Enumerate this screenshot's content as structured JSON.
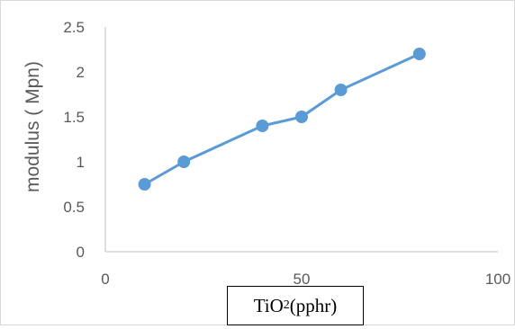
{
  "chart_data": {
    "type": "line",
    "title": "",
    "xlabel": {
      "base": "TiO",
      "subscript": "2",
      "rest": " (pphr)"
    },
    "ylabel": "modulus ( Mpn)",
    "xlim": [
      0,
      100
    ],
    "ylim": [
      0,
      2.5
    ],
    "xticks": [
      "0",
      "50",
      "100"
    ],
    "yticks": [
      "0",
      "0.5",
      "1",
      "1.5",
      "2",
      "2.5"
    ],
    "grid": false,
    "series": [
      {
        "x": [
          10,
          20,
          40,
          50,
          60,
          80
        ],
        "y": [
          0.75,
          1.0,
          1.4,
          1.5,
          1.8,
          2.2
        ],
        "color": "#5b9bd5"
      }
    ]
  }
}
